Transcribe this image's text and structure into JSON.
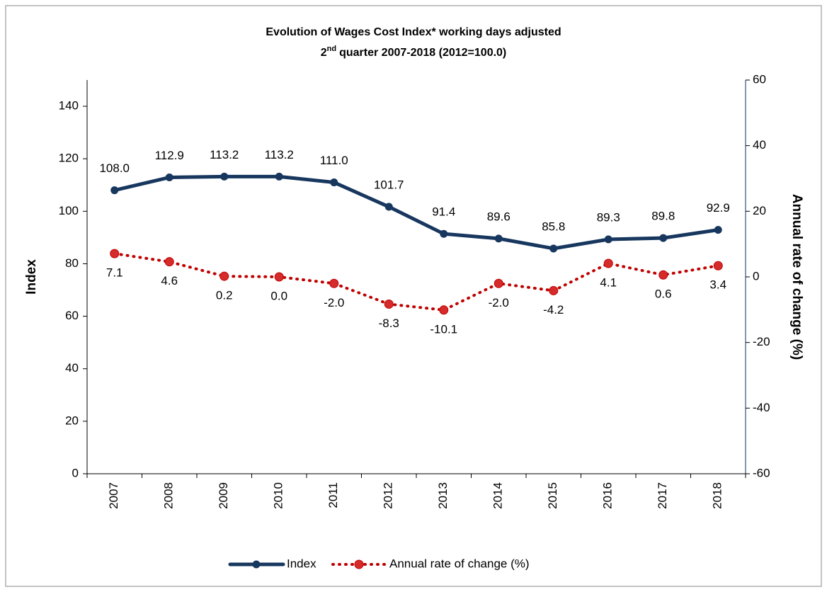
{
  "chart_data": {
    "type": "line",
    "title": "Evolution of Wages Cost Index* working days adjusted",
    "subtitle": [
      "2",
      "nd",
      "quarter 2007-2018 (2012=100.0)"
    ],
    "ylabel": "Index",
    "y2label": "Annual rate of change (%)",
    "categories": [
      "2007",
      "2008",
      "2009",
      "2010",
      "2011",
      "2012",
      "2013",
      "2014",
      "2015",
      "2016",
      "2017",
      "2018"
    ],
    "series": [
      {
        "name": "Index",
        "color": "#17375e",
        "axis": "y",
        "style": "solid",
        "values": [
          108.0,
          112.9,
          113.2,
          113.2,
          111.0,
          101.7,
          91.4,
          89.6,
          85.8,
          89.3,
          89.8,
          92.9
        ],
        "value_labels": [
          "108.0",
          "112.9",
          "113.2",
          "113.2",
          "111.0",
          "101.7",
          "91.4",
          "89.6",
          "85.8",
          "89.3",
          "89.8",
          "92.9"
        ]
      },
      {
        "name": "Annual rate of change (%)",
        "color": "#c00000",
        "axis": "y2",
        "style": "dotted",
        "values": [
          7.1,
          4.6,
          0.2,
          0.0,
          -2.0,
          -8.3,
          -10.1,
          -2.0,
          -4.2,
          4.1,
          0.6,
          3.4
        ],
        "value_labels": [
          "7.1",
          "4.6",
          "0.2",
          "0.0",
          "-2.0",
          "-8.3",
          "-10.1",
          "-2.0",
          "-4.2",
          "4.1",
          "0.6",
          "3.4"
        ]
      }
    ],
    "ylim": [
      0,
      150
    ],
    "yticks": [
      0,
      20,
      40,
      60,
      80,
      100,
      120,
      140
    ],
    "y2lim": [
      -60,
      60
    ],
    "y2ticks": [
      -60,
      -40,
      -20,
      0,
      20,
      40,
      60
    ],
    "grid": false,
    "legend": "bottom"
  }
}
